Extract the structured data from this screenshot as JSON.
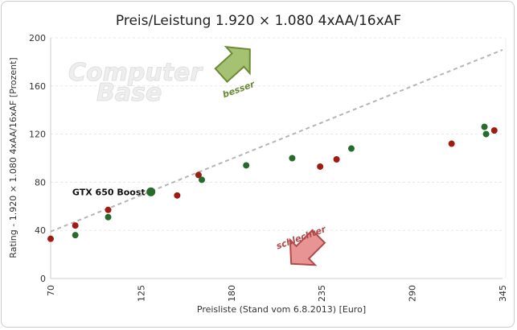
{
  "chart_data": {
    "type": "scatter",
    "title": "Preis/Leistung 1.920 × 1.080 4xAA/16xAF",
    "xlabel": "Preisliste (Stand vom 6.8.2013) [Euro]",
    "ylabel": "Rating - 1.920 × 1.080 4xAA/16xAF [Prozent]",
    "xlim": [
      70,
      345
    ],
    "ylim": [
      0,
      200
    ],
    "xticks": [
      70,
      125,
      180,
      235,
      290,
      345
    ],
    "yticks": [
      0,
      40,
      80,
      120,
      160,
      200
    ],
    "grid": true,
    "colors": {
      "red": "#a01c12",
      "green": "#256b2c",
      "trend": "#b5b5b5"
    },
    "points": [
      {
        "x": 70,
        "y": 33,
        "s": "red"
      },
      {
        "x": 85,
        "y": 44,
        "s": "red"
      },
      {
        "x": 85,
        "y": 36,
        "s": "green"
      },
      {
        "x": 105,
        "y": 57,
        "s": "red"
      },
      {
        "x": 105,
        "y": 51,
        "s": "green"
      },
      {
        "x": 131,
        "y": 72,
        "s": "green",
        "label": "GTX 650 Boost",
        "highlight": true
      },
      {
        "x": 147,
        "y": 69,
        "s": "red"
      },
      {
        "x": 160,
        "y": 86,
        "s": "red"
      },
      {
        "x": 162,
        "y": 82,
        "s": "green"
      },
      {
        "x": 189,
        "y": 94,
        "s": "green"
      },
      {
        "x": 217,
        "y": 100,
        "s": "green"
      },
      {
        "x": 234,
        "y": 93,
        "s": "red"
      },
      {
        "x": 244,
        "y": 99,
        "s": "red"
      },
      {
        "x": 253,
        "y": 108,
        "s": "green"
      },
      {
        "x": 314,
        "y": 112,
        "s": "red"
      },
      {
        "x": 334,
        "y": 126,
        "s": "green"
      },
      {
        "x": 335,
        "y": 120,
        "s": "green"
      },
      {
        "x": 340,
        "y": 123,
        "s": "red"
      }
    ],
    "trendline": {
      "from": [
        70,
        39
      ],
      "to": [
        345,
        190
      ]
    },
    "annotations": {
      "better": "besser",
      "worse": "schlechter"
    }
  },
  "watermark": "ComputerBase"
}
